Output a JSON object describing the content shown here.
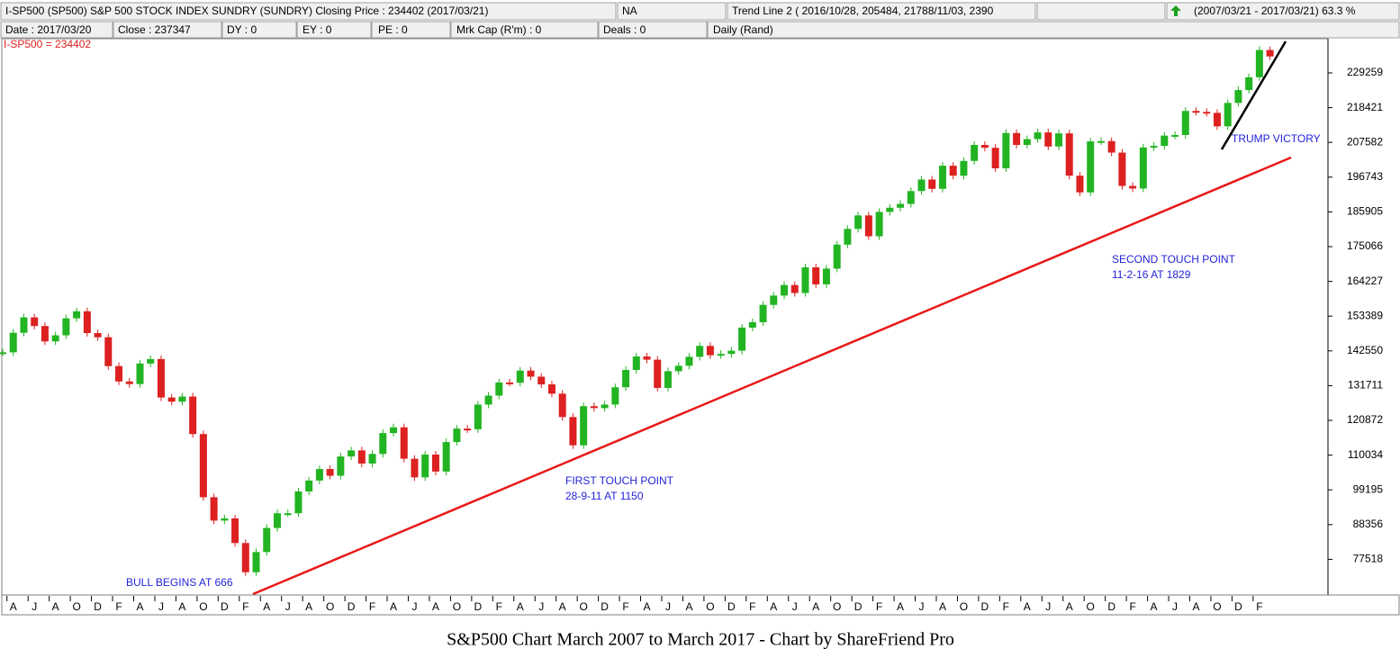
{
  "header": {
    "row1": [
      "I-SP500   (SP500)   S&P 500 STOCK INDEX   SUNDRY (SUNDRY)     Closing Price : 234402    (2017/03/21)",
      "NA",
      "Trend Line 2 ( 2016/10/28, 205484, 21788/11/03, 2390",
      "(2007/03/21 - 2017/03/21)  63.3 %"
    ],
    "row2": [
      "Date : 2017/03/20",
      "Close : 237347",
      "DY : 0",
      "EY : 0",
      "PE : 0",
      "Mrk Cap (R'm) : 0",
      "Deals : 0",
      "Daily (Rand)"
    ]
  },
  "chart_data": {
    "type": "candlestick",
    "price_label": "I-SP500 = 234402",
    "annotations": [
      "BULL BEGINS AT 666",
      "FIRST TOUCH POINT",
      "28-9-11 AT 1150",
      "SECOND TOUCH POINT",
      "11-2-16 AT 1829",
      "TRUMP VICTORY"
    ],
    "up_color": "#22b422",
    "down_color": "#dd2020",
    "ylim": [
      66398,
      239929
    ],
    "yticks": [
      77518,
      88356,
      99195,
      110034,
      120872,
      131711,
      142550,
      153389,
      164227,
      175066,
      185905,
      196743,
      207582,
      218421,
      229259
    ],
    "x_labels": [
      "A",
      "J",
      "A",
      "O",
      "D",
      "F",
      "A",
      "J",
      "A",
      "O",
      "D",
      "F",
      "A",
      "J",
      "A",
      "O",
      "D",
      "F",
      "A",
      "J",
      "A",
      "O",
      "D",
      "F",
      "A",
      "J",
      "A",
      "O",
      "D",
      "F",
      "A",
      "J",
      "A",
      "O",
      "D",
      "F",
      "A",
      "J",
      "A",
      "O",
      "D",
      "F",
      "A",
      "J",
      "A",
      "O",
      "D",
      "F",
      "A",
      "J",
      "A",
      "O",
      "D",
      "F",
      "A",
      "J",
      "A",
      "O",
      "D",
      "F"
    ],
    "values": [
      142100,
      148200,
      153000,
      150300,
      145500,
      147400,
      152700,
      154900,
      148100,
      146800,
      137800,
      133000,
      132200,
      138600,
      140000,
      128000,
      126700,
      128300,
      116600,
      96900,
      89600,
      90300,
      82600,
      73500,
      79800,
      87300,
      91900,
      91900,
      98700,
      102100,
      105700,
      103600,
      109600,
      111500,
      107400,
      110400,
      116900,
      118700,
      108900,
      103100,
      110200,
      104900,
      114100,
      118300,
      118100,
      125800,
      128600,
      132700,
      132600,
      136400,
      134500,
      132100,
      129200,
      121900,
      113100,
      125300,
      124700,
      125800,
      131200,
      136600,
      140800,
      139800,
      131000,
      136200,
      137900,
      140700,
      144100,
      141200,
      141600,
      142600,
      149800,
      151500,
      156900,
      159800,
      163100,
      160600,
      168600,
      163300,
      168200,
      175700,
      180600,
      184800,
      178300,
      185900,
      187200,
      188400,
      192400,
      196000,
      193100,
      200300,
      197200,
      201800,
      206800,
      205900,
      199500,
      210500,
      206800,
      208600,
      210700,
      206300,
      210400,
      197200,
      192000,
      207900,
      208000,
      204400,
      194000,
      193200,
      206000,
      206500,
      209700,
      209900,
      217400,
      217100,
      216800,
      212600,
      219900,
      223900,
      227900,
      236400,
      234400
    ]
  },
  "caption": "S&P500 Chart March 2007 to March 2017 - Chart by ShareFriend Pro"
}
